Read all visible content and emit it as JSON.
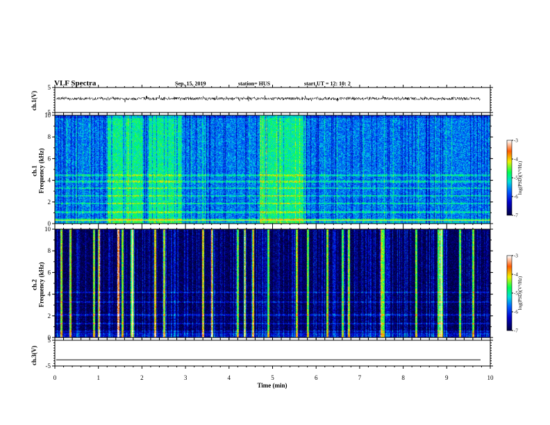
{
  "header": {
    "title": "VLF Spectra",
    "date": "Sep. 15, 2019",
    "station": "station= HUS",
    "start": "start  UT =   12: 10: 2"
  },
  "chart_data": [
    {
      "type": "line",
      "panel": "ch1-waveform",
      "ylabel": "ch.1(V)",
      "ylim": [
        -5,
        5
      ],
      "yticks": [
        "5",
        "-5"
      ],
      "x": [
        0,
        10
      ],
      "values": "dense noise trace centered near 0 V (amplitude about +/-0.5 V)"
    },
    {
      "type": "heatmap",
      "panel": "ch1-spectrogram",
      "ylabel": "ch.1\nFrequency (kHz)",
      "ylim": [
        0,
        10
      ],
      "yticks": [
        "0",
        "2",
        "4",
        "6",
        "8",
        "10"
      ],
      "colorbar_label": "log(PSD)(V²/Hz)",
      "colorbar_ticks": [
        "-3",
        "-4",
        "-5",
        "-6",
        "-7"
      ],
      "colorbar_range": [
        -7,
        -3
      ],
      "background_level": -5.6,
      "elevated_intervals_min": [
        [
          1.2,
          2.0
        ],
        [
          2.15,
          2.9
        ],
        [
          4.7,
          5.75
        ]
      ],
      "horizontal_bands_khz": [
        0.4,
        1.1,
        1.9,
        2.6,
        3.3,
        3.9,
        4.5
      ]
    },
    {
      "type": "heatmap",
      "panel": "ch2-spectrogram",
      "ylabel": "ch.2\nFrequency (kHz)",
      "ylim": [
        0,
        10
      ],
      "yticks": [
        "0",
        "2",
        "4",
        "6",
        "8",
        "10"
      ],
      "colorbar_label": "log(PSD)(V²/Hz)",
      "colorbar_ticks": [
        "-3",
        "-4",
        "-5",
        "-6",
        "-7"
      ],
      "colorbar_range": [
        -7,
        -3
      ],
      "background_level": -6.9,
      "sferic_times_min": [
        0.15,
        0.35,
        0.9,
        1.0,
        1.45,
        1.55,
        1.75,
        1.78,
        2.3,
        2.5,
        3.4,
        3.6,
        4.2,
        4.35,
        4.55,
        4.9,
        5.55,
        5.8,
        6.25,
        6.6,
        6.75,
        7.5,
        7.55,
        8.3,
        8.8,
        8.85,
        8.88,
        9.3,
        9.6
      ],
      "horizontal_bands_khz": [
        0.6,
        1.3,
        2.1,
        3.3,
        4.2
      ]
    },
    {
      "type": "line",
      "panel": "ch3-waveform",
      "ylabel": "ch.3(V)",
      "ylim": [
        -5,
        5
      ],
      "yticks": [
        "5",
        "-5"
      ],
      "x": [
        0,
        10
      ],
      "values": [
        -2.6,
        -2.6
      ]
    }
  ],
  "xaxis": {
    "label": "Time  (min)",
    "ticks": [
      "0",
      "1",
      "2",
      "3",
      "4",
      "5",
      "6",
      "7",
      "8",
      "9",
      "10"
    ],
    "range": [
      0,
      10
    ]
  }
}
